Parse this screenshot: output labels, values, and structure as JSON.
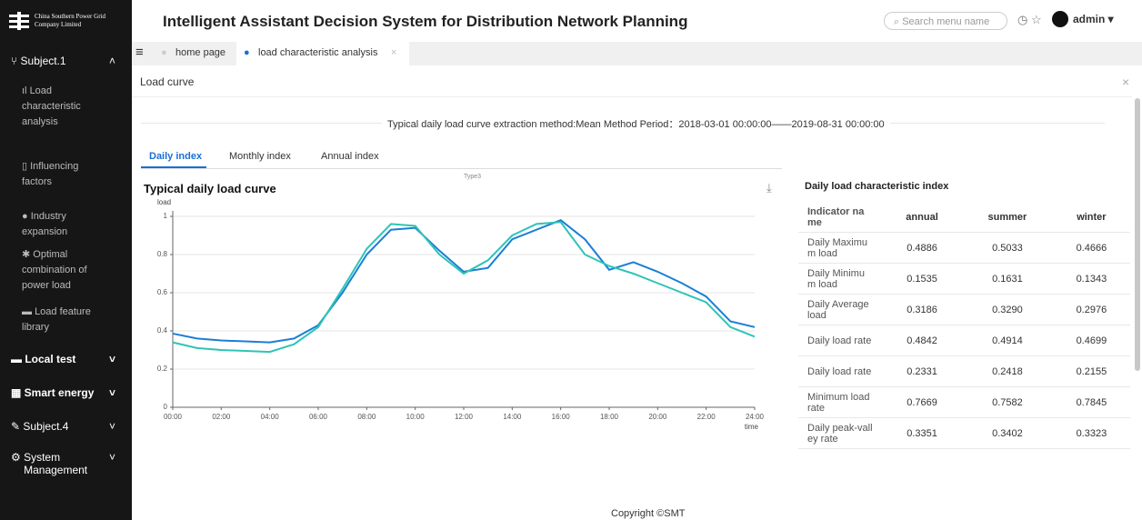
{
  "sidebar": {
    "logo": "China Southern Power Grid Company Limited",
    "items": [
      {
        "label": "Subject.1",
        "sub": [
          "Load characteristic analysis",
          "Influencing factors",
          "Industry expansion",
          "Optimal combination of power load",
          "Load feature library"
        ]
      },
      {
        "label": "Local test"
      },
      {
        "label": "Smart energy"
      },
      {
        "label": "Subject.4"
      },
      {
        "label": "System Management"
      }
    ]
  },
  "header": {
    "title": "Intelligent Assistant Decision System for Distribution Network Planning",
    "search": "Search menu name",
    "user": "admin"
  },
  "tabs": [
    "home page",
    "load characteristic analysis"
  ],
  "panel": {
    "title": "Load curve",
    "method": "Typical daily load curve extraction method:Mean Method Period：2018-03-01 00:00:00——2019-08-31 00:00:00",
    "subtabs": [
      "Daily index",
      "Monthly index",
      "Annual index"
    ],
    "subtab_label": "Type3"
  },
  "chart_data": {
    "type": "line",
    "title": "Typical daily load curve",
    "y_label": "load",
    "x_label": "time",
    "x": [
      0,
      1,
      2,
      3,
      4,
      5,
      6,
      7,
      8,
      9,
      10,
      11,
      12,
      13,
      14,
      15,
      16,
      17,
      18,
      19,
      20,
      21,
      22,
      23,
      24
    ],
    "series": [
      {
        "color": "#1a7fd6",
        "values": [
          0.386,
          0.36,
          0.35,
          0.345,
          0.34,
          0.36,
          0.43,
          0.6,
          0.8,
          0.93,
          0.94,
          0.82,
          0.71,
          0.73,
          0.88,
          0.93,
          0.98,
          0.88,
          0.72,
          0.76,
          0.71,
          0.65,
          0.58,
          0.45,
          0.42
        ]
      },
      {
        "color": "#2ec4b6",
        "values": [
          0.34,
          0.31,
          0.3,
          0.295,
          0.29,
          0.33,
          0.42,
          0.62,
          0.83,
          0.96,
          0.95,
          0.8,
          0.7,
          0.77,
          0.9,
          0.96,
          0.97,
          0.8,
          0.74,
          0.7,
          0.65,
          0.6,
          0.55,
          0.42,
          0.37
        ]
      }
    ],
    "xlim": [
      0,
      24
    ],
    "xticks": [
      {
        "value": 0,
        "label": "00:00"
      },
      {
        "value": 2,
        "label": "02:00"
      },
      {
        "value": 4,
        "label": "04:00"
      },
      {
        "value": 6,
        "label": "06:00"
      },
      {
        "value": 8,
        "label": "08:00"
      },
      {
        "value": 10,
        "label": "10:00"
      },
      {
        "value": 12,
        "label": "12:00"
      },
      {
        "value": 14,
        "label": "14:00"
      },
      {
        "value": 16,
        "label": "16:00"
      },
      {
        "value": 18,
        "label": "18:00"
      },
      {
        "value": 20,
        "label": "20:00"
      },
      {
        "value": 22,
        "label": "22:00"
      },
      {
        "value": 24,
        "label": "24:00"
      }
    ],
    "ylim": [
      0,
      1
    ],
    "yticks": [
      0,
      0.2,
      0.4,
      0.6,
      0.8,
      1
    ],
    "grid": true
  },
  "table": {
    "title": "Daily load characteristic index",
    "columns": [
      "Indicator name",
      "annual",
      "summer",
      "winter"
    ],
    "rows": [
      [
        "Daily Maximum load",
        "0.4886",
        "0.5033",
        "0.4666"
      ],
      [
        "Daily Minimum load",
        "0.1535",
        "0.1631",
        "0.1343"
      ],
      [
        "Daily Average load",
        "0.3186",
        "0.3290",
        "0.2976"
      ],
      [
        "Daily load rate",
        "0.4842",
        "0.4914",
        "0.4699"
      ],
      [
        "Daily load rate",
        "0.2331",
        "0.2418",
        "0.2155"
      ],
      [
        "Minimum load rate",
        "0.7669",
        "0.7582",
        "0.7845"
      ],
      [
        "Daily peak-valley rate",
        "0.3351",
        "0.3402",
        "0.3323"
      ]
    ]
  },
  "footer": "Copyright ©SMT"
}
